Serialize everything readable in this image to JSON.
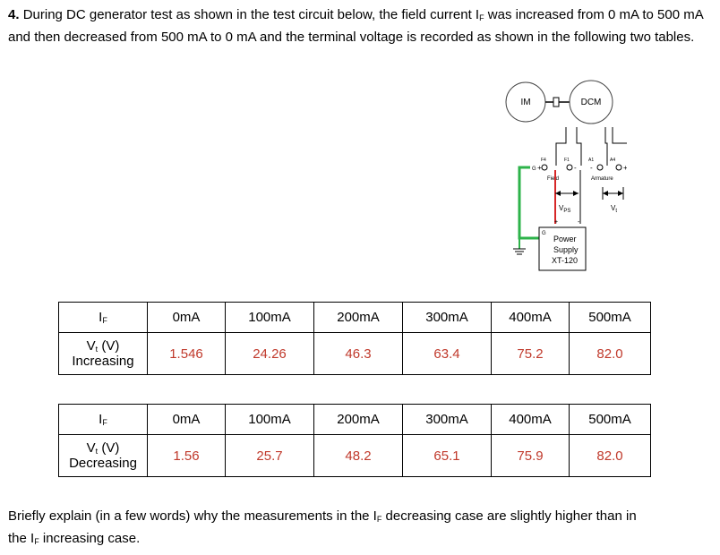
{
  "question": {
    "number": "4.",
    "text": "During DC generator test as shown in the test circuit below, the field current I",
    "sub_f": "F",
    "text2": " was increased from 0 mA to 500 mA and then decreased from 500 mA to 0 mA and the terminal voltage is recorded as shown in the following two tables."
  },
  "diagram": {
    "im": "IM",
    "dcm": "DCM",
    "f4": "F4",
    "f1": "F1",
    "a1": "A1",
    "a4": "A4",
    "g": "G",
    "field": "Field",
    "armature": "Armature",
    "vps": "V",
    "vps_sub": "PS",
    "vt": "V",
    "vt_sub": "t",
    "psu1": "Power",
    "psu2": "Supply",
    "psu3": "XT-120",
    "plus": "+",
    "minus": "-",
    "g2": "G"
  },
  "table_increasing": {
    "header_label": "I",
    "header_sub": "F",
    "currents": [
      "0mA",
      "100mA",
      "200mA",
      "300mA",
      "400mA",
      "500mA"
    ],
    "row_label_1": "V",
    "row_label_sub": "t",
    "row_label_unit": " (V)",
    "row_label_2": "Increasing",
    "values": [
      "1.546",
      "24.26",
      "46.3",
      "63.4",
      "75.2",
      "82.0"
    ]
  },
  "table_decreasing": {
    "header_label": "I",
    "header_sub": "F",
    "currents": [
      "0mA",
      "100mA",
      "200mA",
      "300mA",
      "400mA",
      "500mA"
    ],
    "row_label_1": "V",
    "row_label_sub": "t",
    "row_label_unit": " (V)",
    "row_label_2": "Decreasing",
    "values": [
      "1.56",
      "25.7",
      "48.2",
      "65.1",
      "75.9",
      "82.0"
    ]
  },
  "followup": {
    "text1": "Briefly explain (in a few words) why the measurements in the I",
    "sub_f": "F",
    "text2": " decreasing case are slightly higher than in the I",
    "text3": " increasing case."
  },
  "colors": {
    "value_red": "#c0392b",
    "ground_green": "#2db34a"
  }
}
